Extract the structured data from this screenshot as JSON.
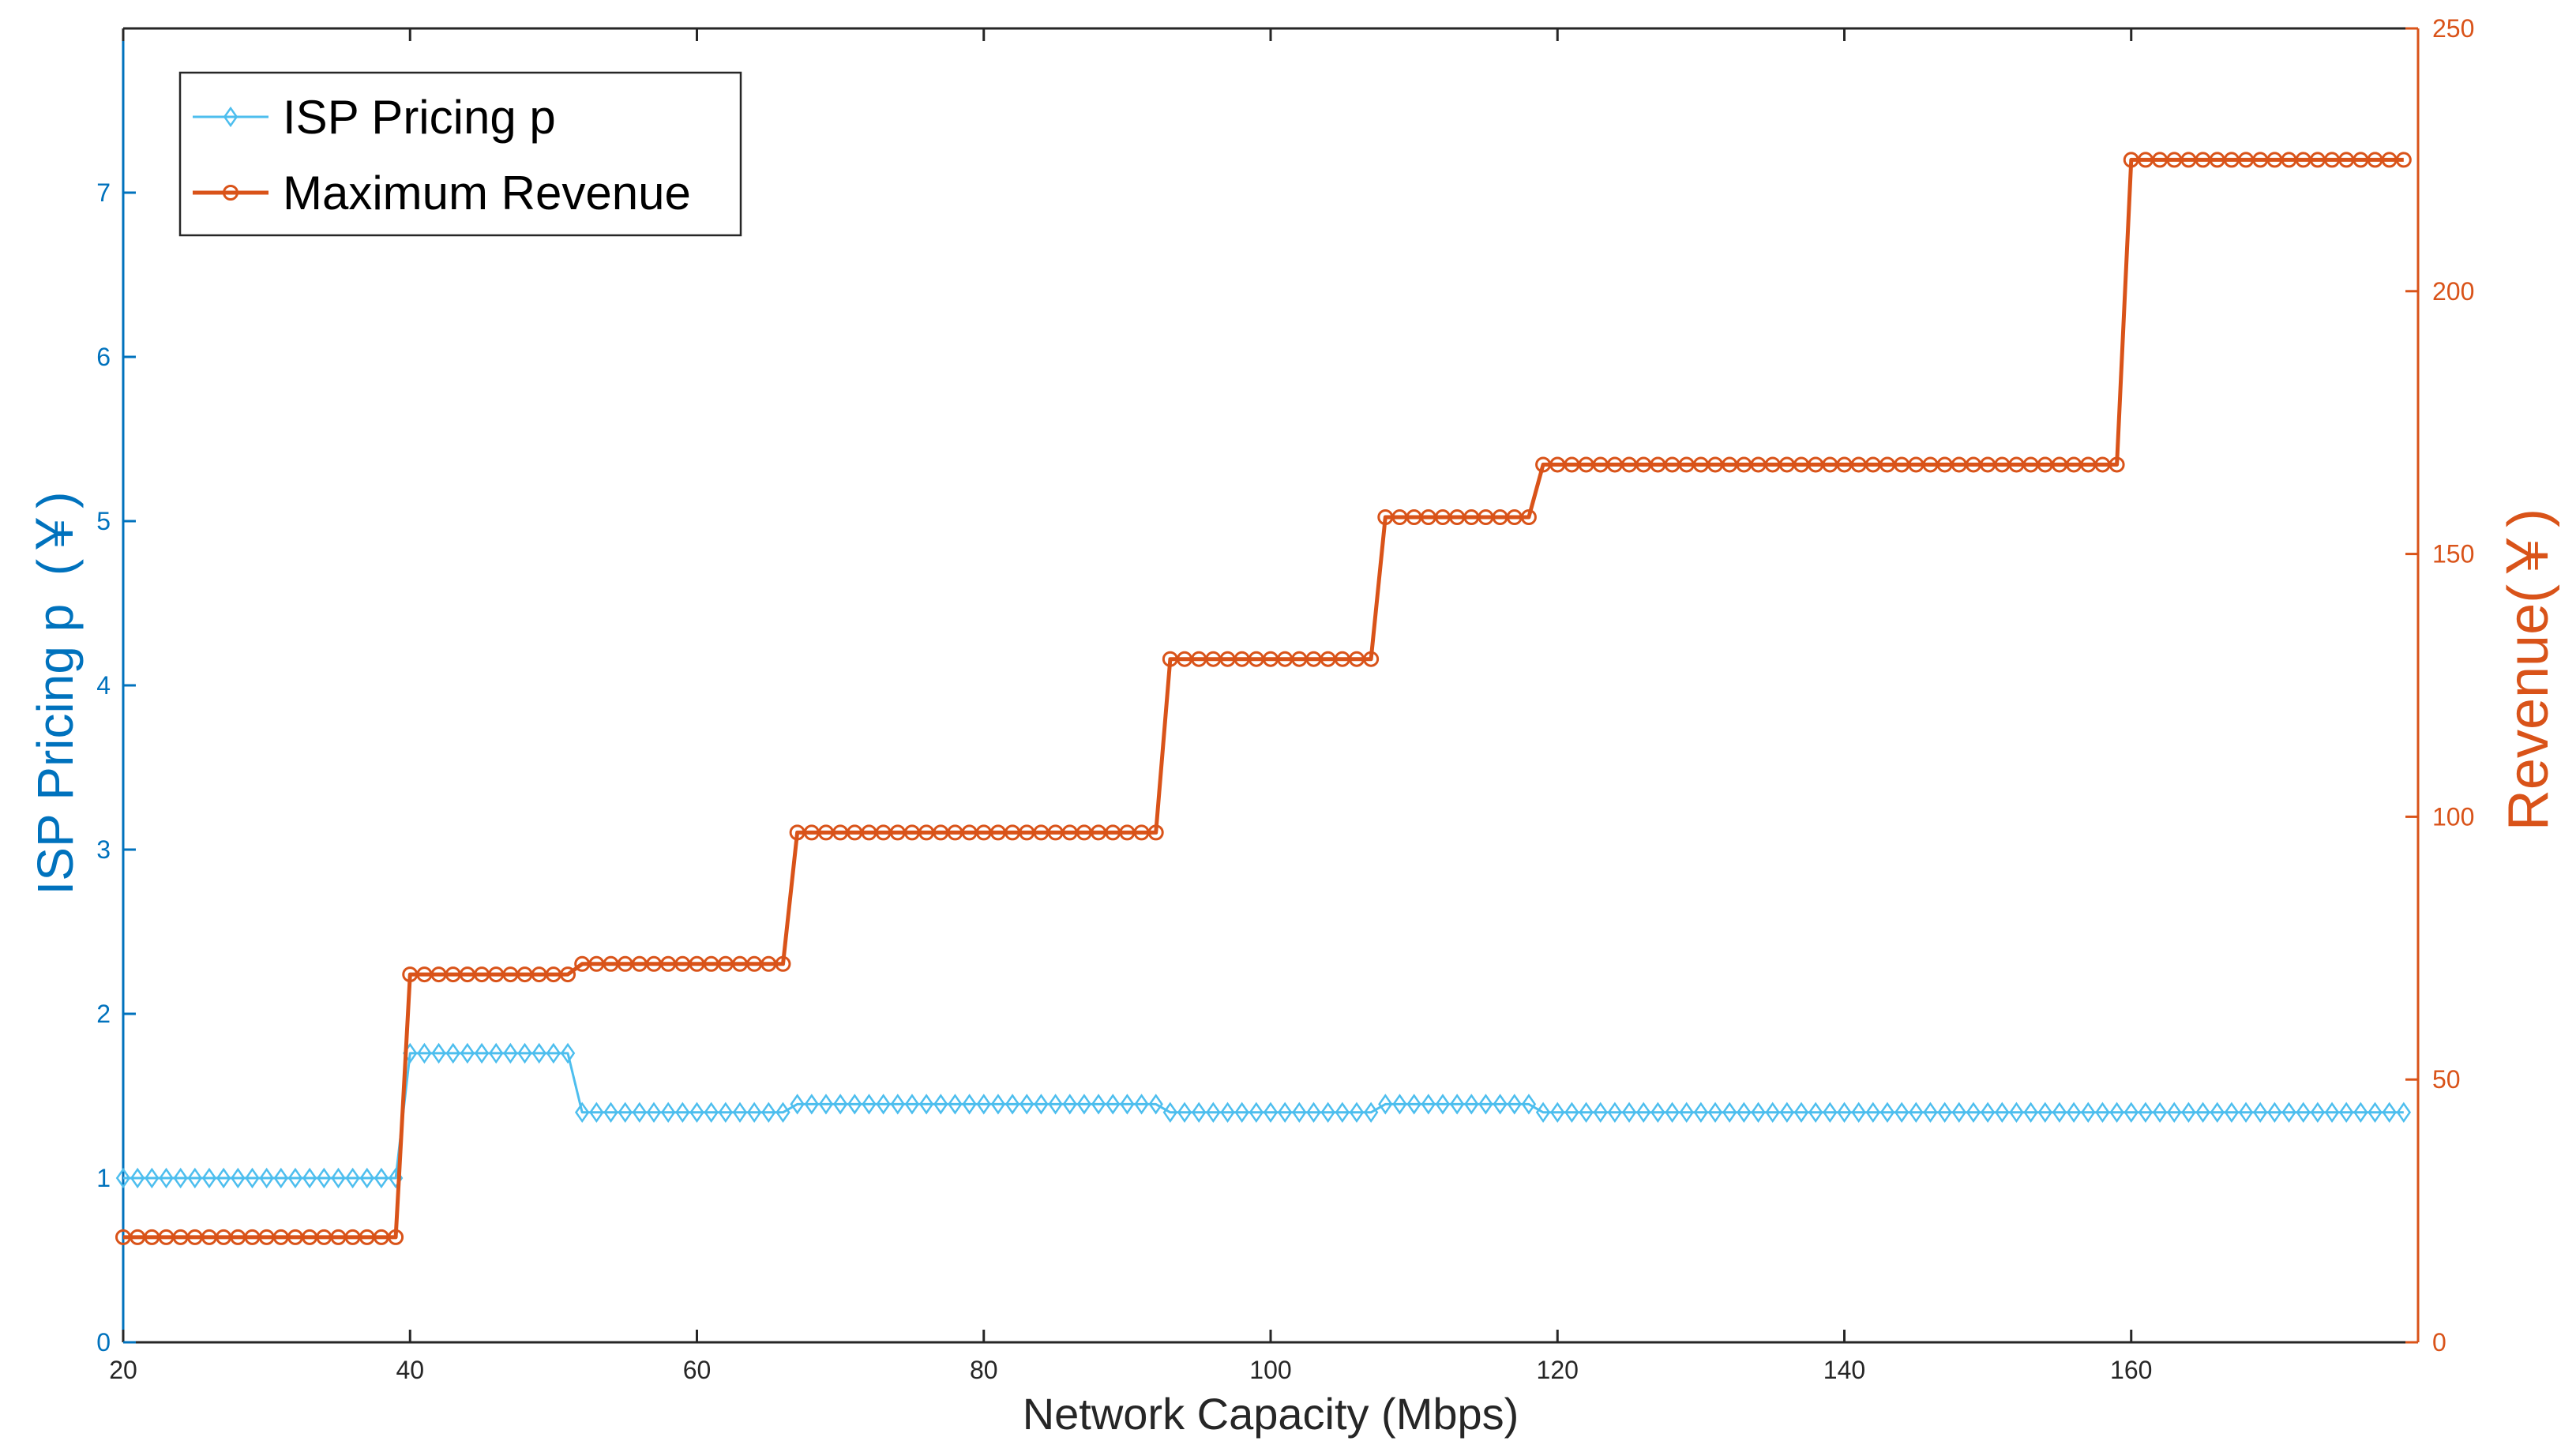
{
  "colors": {
    "isp": "#4DBEEE",
    "revenue": "#D95319",
    "left_axis": "#0072BD",
    "right_axis": "#D95319",
    "axis": "#262626"
  },
  "chart_data": {
    "type": "line",
    "xlabel": "Network Capacity (Mbps)",
    "ylabel_left": "ISP Pricing p  (￥)",
    "ylabel_right": "Revenue(￥)",
    "xlim": [
      20,
      180
    ],
    "xticks": [
      20,
      40,
      60,
      80,
      100,
      120,
      140,
      160
    ],
    "ylim_left": [
      0,
      8
    ],
    "yticks_left": [
      0,
      1,
      2,
      3,
      4,
      5,
      6,
      7
    ],
    "ylim_right": [
      0,
      250
    ],
    "yticks_right": [
      0,
      50,
      100,
      150,
      200,
      250
    ],
    "grid": false,
    "legend_position": "top-left",
    "series": [
      {
        "name": "ISP Pricing p",
        "axis": "left",
        "marker": "diamond",
        "segments": [
          {
            "from": 20,
            "to": 39,
            "value": 1.0
          },
          {
            "from": 40,
            "to": 51,
            "value": 1.76
          },
          {
            "from": 52,
            "to": 66,
            "value": 1.4
          },
          {
            "from": 67,
            "to": 92,
            "value": 1.45
          },
          {
            "from": 93,
            "to": 107,
            "value": 1.4
          },
          {
            "from": 108,
            "to": 118,
            "value": 1.45
          },
          {
            "from": 119,
            "to": 179,
            "value": 1.4
          }
        ]
      },
      {
        "name": "Maximum Revenue",
        "axis": "right",
        "marker": "circle",
        "segments": [
          {
            "from": 20,
            "to": 39,
            "value": 20
          },
          {
            "from": 40,
            "to": 51,
            "value": 70
          },
          {
            "from": 52,
            "to": 66,
            "value": 72
          },
          {
            "from": 67,
            "to": 92,
            "value": 97
          },
          {
            "from": 93,
            "to": 107,
            "value": 130
          },
          {
            "from": 108,
            "to": 118,
            "value": 157
          },
          {
            "from": 119,
            "to": 159,
            "value": 167
          },
          {
            "from": 160,
            "to": 179,
            "value": 225
          }
        ]
      }
    ]
  }
}
